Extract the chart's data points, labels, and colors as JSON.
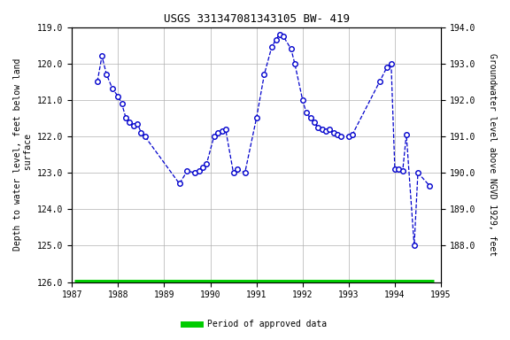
{
  "title": "USGS 331347081343105 BW- 419",
  "ylabel_left": "Depth to water level, feet below land\n surface",
  "ylabel_right": "Groundwater level above NGVD 1929, feet",
  "ylim_left_top": 119.0,
  "ylim_left_bottom": 126.0,
  "ylim_right_top": 194.0,
  "ylim_right_bottom": 187.0,
  "xlim": [
    1987.0,
    1995.0
  ],
  "yticks_left": [
    119.0,
    120.0,
    121.0,
    122.0,
    123.0,
    124.0,
    125.0,
    126.0
  ],
  "yticks_right": [
    194.0,
    193.0,
    192.0,
    191.0,
    190.0,
    189.0,
    188.0
  ],
  "xticks": [
    1987,
    1988,
    1989,
    1990,
    1991,
    1992,
    1993,
    1994,
    1995
  ],
  "background_color": "#ffffff",
  "grid_color": "#b0b0b0",
  "line_color": "#0000cc",
  "marker_facecolor": "#ffffff",
  "marker_edgecolor": "#0000cc",
  "bar_color": "#00cc00",
  "data_x": [
    1987.55,
    1987.65,
    1987.75,
    1987.88,
    1988.0,
    1988.08,
    1988.17,
    1988.25,
    1988.33,
    1988.42,
    1988.5,
    1988.58,
    1989.33,
    1989.5,
    1989.67,
    1989.75,
    1989.83,
    1989.92,
    1990.08,
    1990.17,
    1990.25,
    1990.33,
    1990.5,
    1990.58,
    1990.75,
    1991.0,
    1991.17,
    1991.33,
    1991.42,
    1991.5,
    1991.58,
    1991.75,
    1991.83,
    1992.0,
    1992.08,
    1992.17,
    1992.25,
    1992.33,
    1992.42,
    1992.5,
    1992.58,
    1992.67,
    1992.75,
    1992.83,
    1993.0,
    1993.08,
    1993.67,
    1993.83,
    1993.92,
    1994.0,
    1994.08,
    1994.17,
    1994.25,
    1994.42,
    1994.5,
    1994.75
  ],
  "data_y": [
    120.5,
    119.8,
    120.3,
    120.7,
    120.9,
    121.1,
    121.5,
    121.6,
    121.7,
    121.65,
    121.9,
    122.0,
    123.3,
    122.95,
    123.0,
    122.95,
    122.85,
    122.75,
    122.0,
    121.9,
    121.85,
    121.8,
    123.0,
    122.9,
    123.0,
    121.5,
    120.3,
    119.55,
    119.35,
    119.2,
    119.25,
    119.6,
    120.0,
    121.0,
    121.35,
    121.5,
    121.6,
    121.75,
    121.8,
    121.85,
    121.8,
    121.9,
    121.95,
    122.0,
    122.0,
    121.95,
    120.5,
    120.1,
    120.0,
    122.9,
    122.9,
    122.95,
    121.95,
    125.0,
    123.0,
    123.35
  ],
  "approved_bar_x_start": 1987.05,
  "approved_bar_x_end": 1994.85,
  "approved_bar_y": 126.0,
  "title_fontsize": 9,
  "axis_fontsize": 7,
  "tick_fontsize": 7
}
